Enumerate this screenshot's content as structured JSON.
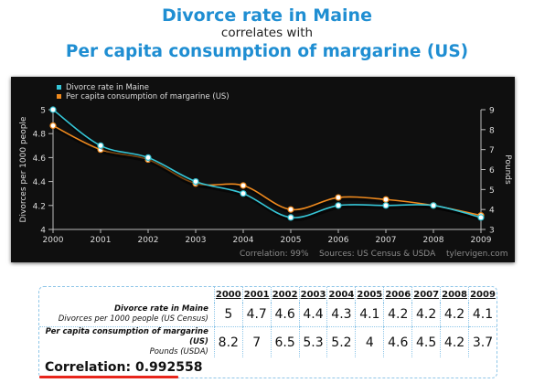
{
  "header": {
    "title": "Divorce rate in Maine",
    "mid": "correlates with",
    "subtitle": "Per capita consumption of margarine (US)"
  },
  "colors": {
    "series_divorce": "#36c5d6",
    "series_margarine": "#f08a1e",
    "title_blue": "#1f8ed2",
    "underline_red": "#e8251b"
  },
  "chart_data": {
    "type": "line",
    "x": [
      2000,
      2001,
      2002,
      2003,
      2004,
      2005,
      2006,
      2007,
      2008,
      2009
    ],
    "xlim": [
      2000,
      2009
    ],
    "y_left": {
      "label": "Divorces per 1000 people",
      "lim": [
        4,
        5
      ],
      "ticks": [
        4,
        4.2,
        4.4,
        4.6,
        4.8,
        5
      ],
      "tick_labels": [
        "4",
        "4.2",
        "4.4",
        "4.6",
        "4.8",
        "5"
      ]
    },
    "y_right": {
      "label": "Pounds",
      "lim": [
        3,
        9
      ],
      "ticks": [
        3,
        4,
        5,
        6,
        7,
        8,
        9
      ],
      "tick_labels": [
        "3",
        "4",
        "5",
        "6",
        "7",
        "8",
        "9"
      ]
    },
    "x_tick_labels": [
      "2000",
      "2001",
      "2002",
      "2003",
      "2004",
      "2005",
      "2006",
      "2007",
      "2008",
      "2009"
    ],
    "series": [
      {
        "name": "Divorce rate in Maine",
        "axis": "left",
        "color": "#36c5d6",
        "values": [
          5,
          4.7,
          4.6,
          4.4,
          4.3,
          4.1,
          4.2,
          4.2,
          4.2,
          4.1
        ]
      },
      {
        "name": "Per capita consumption of margarine (US)",
        "axis": "right",
        "color": "#f08a1e",
        "values": [
          8.2,
          7,
          6.5,
          5.3,
          5.2,
          4,
          4.6,
          4.5,
          4.2,
          3.7
        ]
      }
    ],
    "legend_position": "top-left",
    "grid": false,
    "footer_note": "Correlation: 99%",
    "footer_sources": "Sources: US Census & USDA",
    "footer_site": "tylervigen.com"
  },
  "table": {
    "years": [
      "2000",
      "2001",
      "2002",
      "2003",
      "2004",
      "2005",
      "2006",
      "2007",
      "2008",
      "2009"
    ],
    "rows": [
      {
        "label_bold": "Divorce rate in Maine",
        "label_sub": "Divorces per 1000 people (US Census)",
        "values": [
          "5",
          "4.7",
          "4.6",
          "4.4",
          "4.3",
          "4.1",
          "4.2",
          "4.2",
          "4.2",
          "4.1"
        ]
      },
      {
        "label_bold": "Per capita consumption of margarine (US)",
        "label_sub": "Pounds (USDA)",
        "values": [
          "8.2",
          "7",
          "6.5",
          "5.3",
          "5.2",
          "4",
          "4.6",
          "4.5",
          "4.2",
          "3.7"
        ]
      }
    ],
    "correlation": "Correlation: 0.992558"
  }
}
